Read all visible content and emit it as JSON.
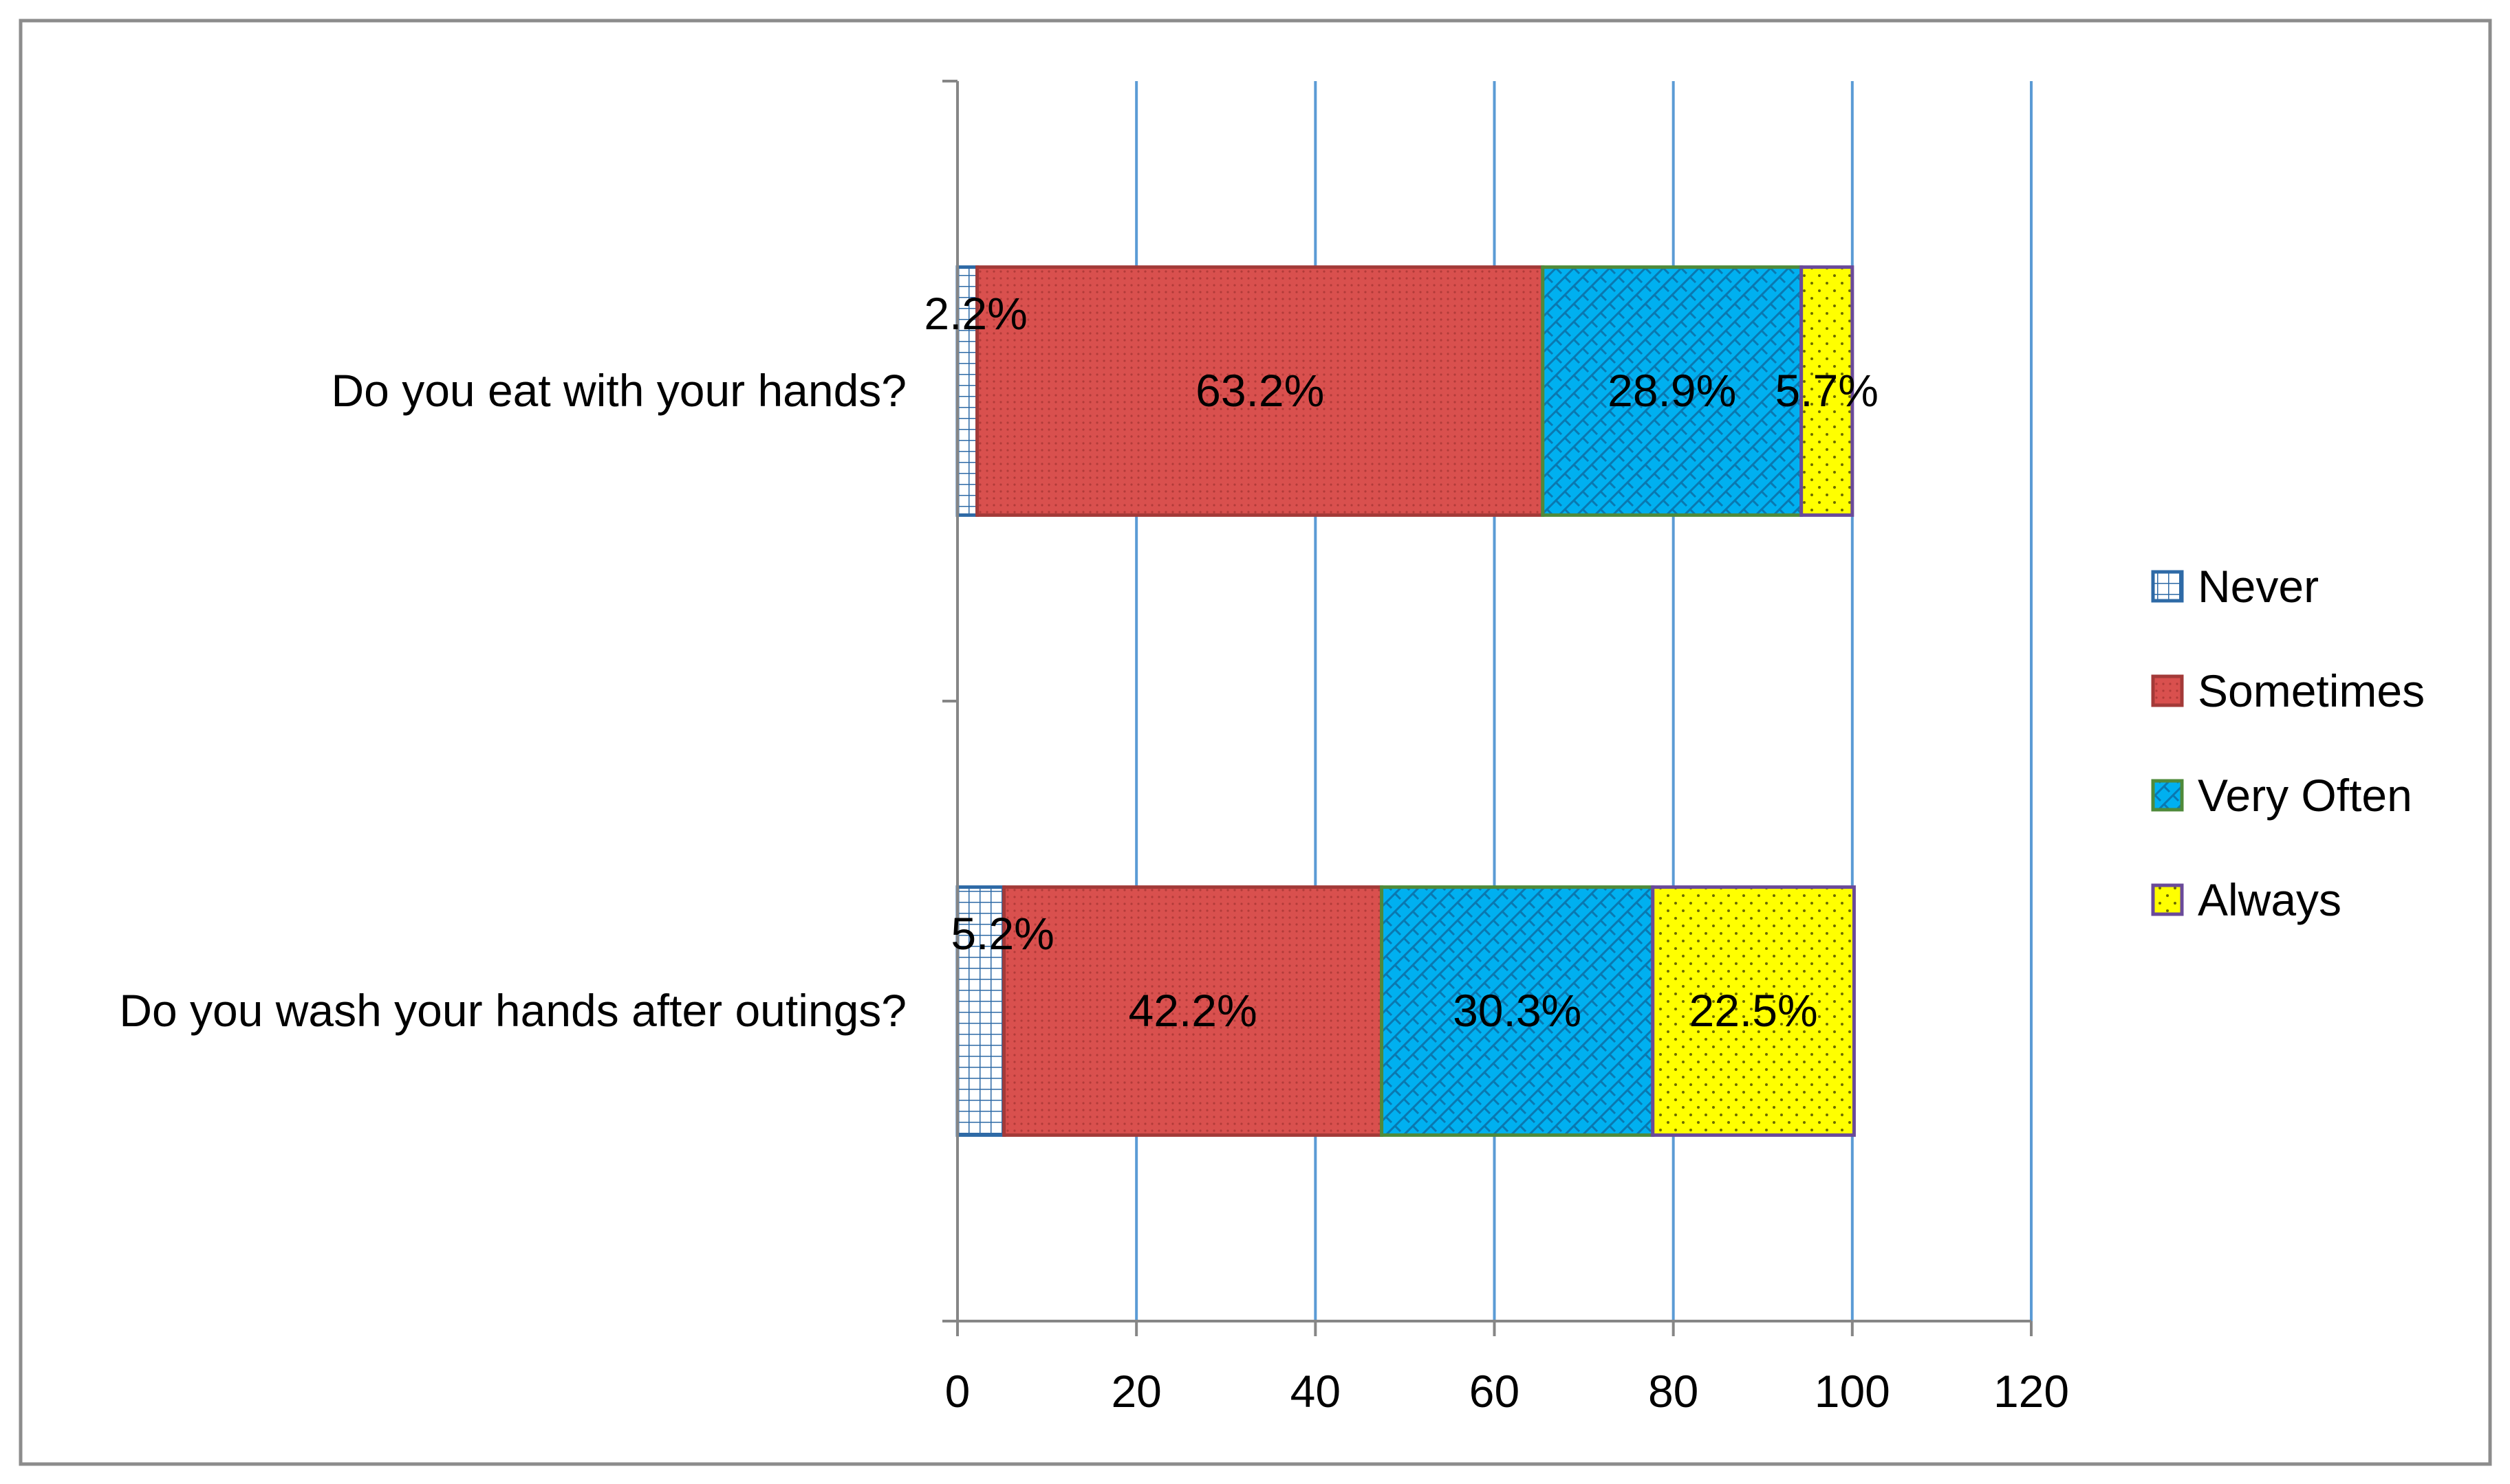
{
  "chart_data": {
    "type": "bar",
    "orientation": "horizontal",
    "stacked": true,
    "categories": [
      "Do you wash your hands after outings?",
      "Do you eat with your hands?"
    ],
    "series": [
      {
        "name": "Never",
        "values": [
          5.2,
          2.2
        ],
        "labels": [
          "5.2%",
          "2.2%"
        ],
        "color": "#ffffff",
        "border": "#2e6aa6",
        "pattern": "grid"
      },
      {
        "name": "Sometimes",
        "values": [
          42.2,
          63.2
        ],
        "labels": [
          "42.2%",
          "63.2%"
        ],
        "color": "#d9504e",
        "border": "#a33a38",
        "pattern": "fine-dots"
      },
      {
        "name": "Very Often",
        "values": [
          30.3,
          28.9
        ],
        "labels": [
          "30.3%",
          "28.9%"
        ],
        "color": "#00b0f0",
        "border": "#4f8a3a",
        "pattern": "weave"
      },
      {
        "name": "Always",
        "values": [
          22.5,
          5.7
        ],
        "labels": [
          "22.5%",
          "5.7%"
        ],
        "color": "#ffff00",
        "border": "#6a4a9a",
        "pattern": "dots"
      }
    ],
    "xlim": [
      0,
      120
    ],
    "xticks": [
      0,
      20,
      40,
      60,
      80,
      100,
      120
    ],
    "grid": true,
    "grid_color": "#5b9bd5",
    "legend_position": "right",
    "title": "",
    "xlabel": "",
    "ylabel": ""
  }
}
